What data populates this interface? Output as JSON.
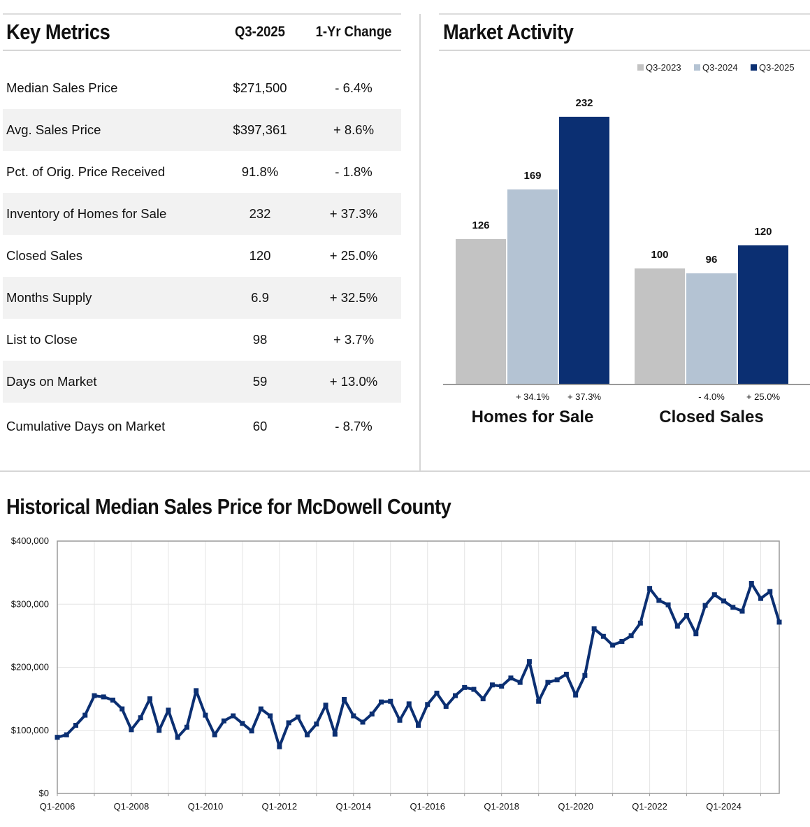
{
  "metrics": {
    "title": "Key Metrics",
    "col_period": "Q3-2025",
    "col_change": "1-Yr Change",
    "rows": [
      {
        "label": "Median Sales Price",
        "value": "$271,500",
        "change": "- 6.4%"
      },
      {
        "label": "Avg. Sales Price",
        "value": "$397,361",
        "change": "+ 8.6%"
      },
      {
        "label": "Pct. of Orig. Price Received",
        "value": "91.8%",
        "change": "- 1.8%"
      },
      {
        "label": "Inventory of Homes for Sale",
        "value": "232",
        "change": "+ 37.3%"
      },
      {
        "label": "Closed Sales",
        "value": "120",
        "change": "+ 25.0%"
      },
      {
        "label": "Months Supply",
        "value": "6.9",
        "change": "+ 32.5%"
      },
      {
        "label": "List to Close",
        "value": "98",
        "change": "+ 3.7%"
      },
      {
        "label": "Days on Market",
        "value": "59",
        "change": "+ 13.0%"
      },
      {
        "label": "Cumulative Days on Market",
        "value": "60",
        "change": "- 8.7%"
      }
    ]
  },
  "market": {
    "title": "Market Activity"
  },
  "history": {
    "title": "Historical Median Sales Price for McDowell County"
  },
  "colors": {
    "q3_2023": "#c3c3c3",
    "q3_2024": "#b4c3d3",
    "q3_2025": "#0b2f72",
    "line": "#0b2f72",
    "grid": "#e4e4e4"
  },
  "chart_data": [
    {
      "type": "bar",
      "title": "Market Activity",
      "categories": [
        "Homes for Sale",
        "Closed Sales"
      ],
      "series": [
        {
          "name": "Q3-2023",
          "values": [
            126,
            100
          ]
        },
        {
          "name": "Q3-2024",
          "values": [
            169,
            96
          ]
        },
        {
          "name": "Q3-2025",
          "values": [
            232,
            120
          ]
        }
      ],
      "changes": {
        "Q3-2024": [
          "+ 34.1%",
          "- 4.0%"
        ],
        "Q3-2025": [
          "+ 37.3%",
          "+ 25.0%"
        ]
      },
      "legend": "top-right",
      "ylim": [
        0,
        232
      ]
    },
    {
      "type": "line",
      "title": "Historical Median Sales Price for McDowell County",
      "x_start": "Q1-2006",
      "x_ticks": [
        "Q1-2006",
        "Q1-2008",
        "Q1-2010",
        "Q1-2012",
        "Q1-2014",
        "Q1-2016",
        "Q1-2018",
        "Q1-2020",
        "Q1-2022",
        "Q1-2024"
      ],
      "y_ticks": [
        "$0",
        "$100,000",
        "$200,000",
        "$300,000",
        "$400,000"
      ],
      "ylim": [
        0,
        400000
      ],
      "grid": true,
      "series": [
        {
          "name": "Median Sales Price",
          "values": [
            89000,
            93000,
            108000,
            124000,
            155000,
            153000,
            148000,
            134000,
            101000,
            120000,
            150000,
            100000,
            132000,
            89000,
            105000,
            163000,
            124000,
            93000,
            115000,
            123000,
            111000,
            99000,
            134000,
            123000,
            74000,
            112000,
            121000,
            93000,
            110000,
            140000,
            94000,
            149000,
            123000,
            113000,
            126000,
            145000,
            146000,
            116000,
            142000,
            108000,
            141000,
            159000,
            138000,
            155000,
            168000,
            165000,
            150000,
            172000,
            170000,
            183000,
            176000,
            209000,
            146000,
            176000,
            180000,
            189000,
            156000,
            187000,
            261000,
            249000,
            235000,
            241000,
            250000,
            270000,
            325000,
            306000,
            299000,
            265000,
            282000,
            253000,
            298000,
            315000,
            305000,
            295000,
            289000,
            333000,
            309000,
            320000,
            271500
          ]
        }
      ]
    }
  ]
}
